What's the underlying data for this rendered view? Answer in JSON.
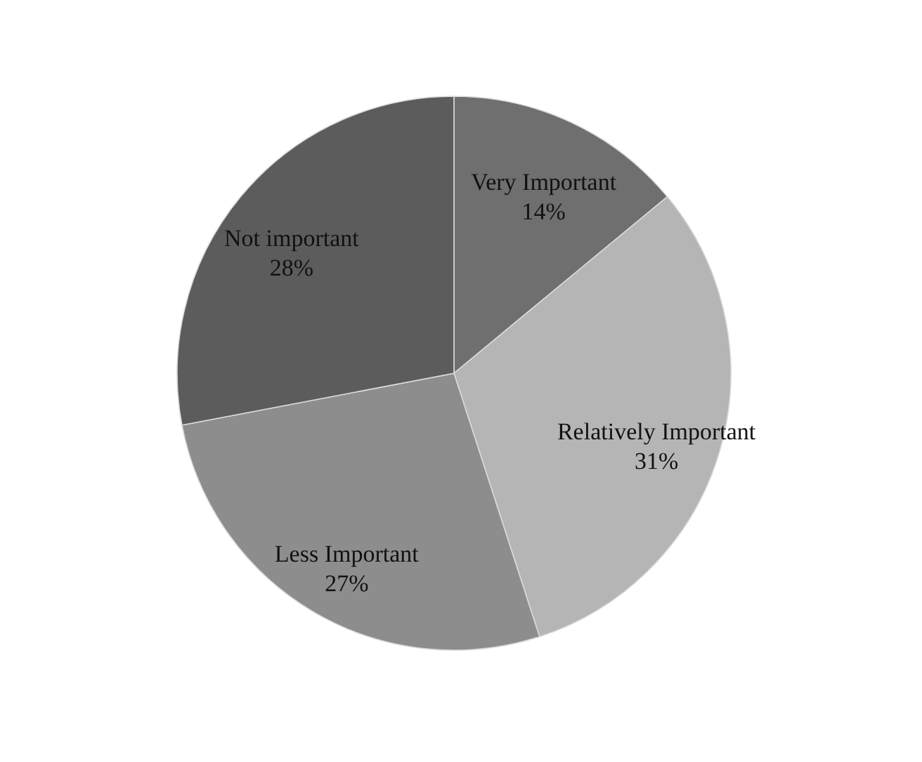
{
  "chart_data": {
    "type": "pie",
    "categories": [
      "Very Important",
      "Relatively Important",
      "Less Important",
      "Not important"
    ],
    "values": [
      14,
      31,
      27,
      28
    ],
    "value_labels": [
      "14%",
      "31%",
      "27%",
      "28%"
    ],
    "colors": [
      "#6f6f6f",
      "#b5b5b5",
      "#8d8d8d",
      "#5c5c5c"
    ],
    "legend": false
  }
}
